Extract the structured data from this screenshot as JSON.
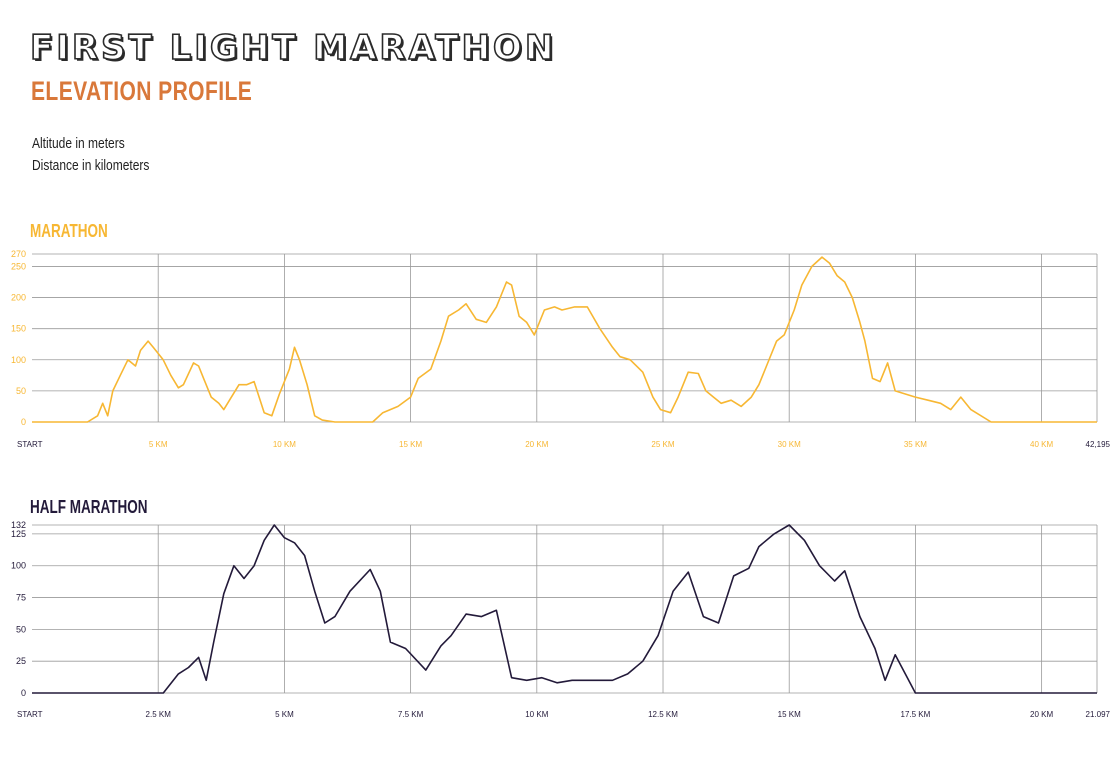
{
  "page": {
    "title": "FIRST LIGHT MARATHON",
    "subtitle": "ELEVATION PROFILE",
    "note_altitude": "Altitude in meters",
    "note_distance": "Distance in kilometers"
  },
  "colors": {
    "marathon": "#f7b733",
    "half": "#231a3a",
    "subtitle": "#d9783a",
    "grid": "#9a9a9a"
  },
  "chart_data": [
    {
      "type": "line",
      "title": "MARATHON",
      "ylim": [
        0,
        270
      ],
      "yticks": [
        {
          "value": 0,
          "label": "0"
        },
        {
          "value": 50,
          "label": "50"
        },
        {
          "value": 100,
          "label": "100"
        },
        {
          "value": 150,
          "label": "150"
        },
        {
          "value": 200,
          "label": "200"
        },
        {
          "value": 250,
          "label": "250"
        },
        {
          "value": 270,
          "label": "270"
        }
      ],
      "xlim": [
        0,
        42.195
      ],
      "xticks": [
        {
          "value": 0,
          "label": "START"
        },
        {
          "value": 5,
          "label": "5 KM"
        },
        {
          "value": 10,
          "label": "10 KM"
        },
        {
          "value": 15,
          "label": "15 KM"
        },
        {
          "value": 20,
          "label": "20 KM"
        },
        {
          "value": 25,
          "label": "25 KM"
        },
        {
          "value": 30,
          "label": "30 KM"
        },
        {
          "value": 35,
          "label": "35 KM"
        },
        {
          "value": 40,
          "label": "40 KM"
        },
        {
          "value": 42.195,
          "label": "42,195"
        }
      ],
      "grid": true,
      "series": [
        {
          "color": "#f7b733",
          "x": [
            0,
            2.2,
            2.6,
            2.8,
            3.0,
            3.2,
            3.5,
            3.8,
            4.1,
            4.3,
            4.6,
            4.8,
            5.2,
            5.5,
            5.8,
            6.0,
            6.4,
            6.6,
            6.8,
            7.1,
            7.4,
            7.6,
            7.9,
            8.2,
            8.5,
            8.8,
            9.2,
            9.5,
            9.8,
            10.2,
            10.4,
            10.6,
            10.9,
            11.2,
            11.5,
            12.0,
            13.5,
            13.9,
            14.5,
            15.0,
            15.3,
            15.8,
            16.2,
            16.5,
            16.9,
            17.2,
            17.6,
            18.0,
            18.4,
            18.8,
            19.0,
            19.3,
            19.6,
            19.9,
            20.3,
            20.7,
            21.0,
            21.5,
            22.0,
            22.5,
            23.0,
            23.3,
            23.7,
            24.2,
            24.6,
            24.9,
            25.3,
            25.6,
            26.0,
            26.4,
            26.7,
            27.0,
            27.3,
            27.7,
            28.1,
            28.5,
            28.8,
            29.1,
            29.5,
            29.8,
            30.2,
            30.5,
            30.9,
            31.3,
            31.6,
            31.9,
            32.2,
            32.5,
            32.8,
            33.0,
            33.3,
            33.6,
            33.9,
            34.2,
            34.6,
            35.0,
            35.5,
            36.0,
            36.4,
            36.8,
            37.2,
            38.0,
            40.0,
            42.195
          ],
          "y": [
            0,
            0,
            10,
            30,
            10,
            50,
            75,
            100,
            90,
            115,
            130,
            120,
            100,
            75,
            55,
            60,
            95,
            90,
            70,
            40,
            30,
            20,
            40,
            60,
            60,
            65,
            15,
            10,
            45,
            85,
            120,
            100,
            60,
            10,
            3,
            0,
            0,
            15,
            25,
            40,
            70,
            85,
            130,
            170,
            180,
            190,
            165,
            160,
            185,
            225,
            220,
            170,
            160,
            140,
            180,
            185,
            180,
            185,
            185,
            150,
            120,
            105,
            100,
            80,
            40,
            20,
            15,
            40,
            80,
            78,
            50,
            40,
            30,
            35,
            25,
            40,
            60,
            90,
            130,
            140,
            180,
            220,
            250,
            265,
            255,
            235,
            225,
            200,
            160,
            130,
            70,
            65,
            95,
            50,
            45,
            40,
            35,
            30,
            20,
            40,
            20,
            0,
            0,
            0
          ]
        }
      ]
    },
    {
      "type": "line",
      "title": "HALF MARATHON",
      "ylim": [
        0,
        132
      ],
      "yticks": [
        {
          "value": 0,
          "label": "0"
        },
        {
          "value": 25,
          "label": "25"
        },
        {
          "value": 50,
          "label": "50"
        },
        {
          "value": 75,
          "label": "75"
        },
        {
          "value": 100,
          "label": "100"
        },
        {
          "value": 125,
          "label": "125"
        },
        {
          "value": 132,
          "label": "132"
        }
      ],
      "xlim": [
        0,
        21.097
      ],
      "xticks": [
        {
          "value": 0,
          "label": "START"
        },
        {
          "value": 2.5,
          "label": "2.5 KM"
        },
        {
          "value": 5,
          "label": "5 KM"
        },
        {
          "value": 7.5,
          "label": "7.5 KM"
        },
        {
          "value": 10,
          "label": "10 KM"
        },
        {
          "value": 12.5,
          "label": "12.5 KM"
        },
        {
          "value": 15,
          "label": "15 KM"
        },
        {
          "value": 17.5,
          "label": "17.5 KM"
        },
        {
          "value": 20,
          "label": "20 KM"
        },
        {
          "value": 21.097,
          "label": "21.097"
        }
      ],
      "grid": true,
      "series": [
        {
          "color": "#231a3a",
          "x": [
            0,
            2.6,
            2.9,
            3.1,
            3.3,
            3.45,
            3.6,
            3.8,
            4.0,
            4.2,
            4.4,
            4.6,
            4.8,
            5.0,
            5.2,
            5.4,
            5.6,
            5.8,
            6.0,
            6.3,
            6.7,
            6.9,
            7.1,
            7.4,
            7.8,
            8.1,
            8.3,
            8.6,
            8.9,
            9.2,
            9.5,
            9.8,
            10.1,
            10.4,
            10.7,
            11.1,
            11.5,
            11.8,
            12.1,
            12.4,
            12.7,
            13.0,
            13.3,
            13.6,
            13.9,
            14.2,
            14.4,
            14.7,
            15.0,
            15.3,
            15.6,
            15.9,
            16.1,
            16.4,
            16.7,
            16.9,
            17.1,
            17.3,
            17.5,
            20.0,
            21.097
          ],
          "y": [
            0,
            0,
            15,
            20,
            28,
            10,
            40,
            78,
            100,
            90,
            100,
            120,
            132,
            122,
            118,
            108,
            80,
            55,
            60,
            80,
            97,
            80,
            40,
            35,
            18,
            37,
            45,
            62,
            60,
            65,
            12,
            10,
            12,
            8,
            10,
            10,
            10,
            15,
            25,
            45,
            80,
            95,
            60,
            55,
            92,
            98,
            115,
            125,
            132,
            120,
            100,
            88,
            96,
            60,
            35,
            10,
            30,
            15,
            0,
            0,
            0
          ]
        }
      ]
    }
  ]
}
